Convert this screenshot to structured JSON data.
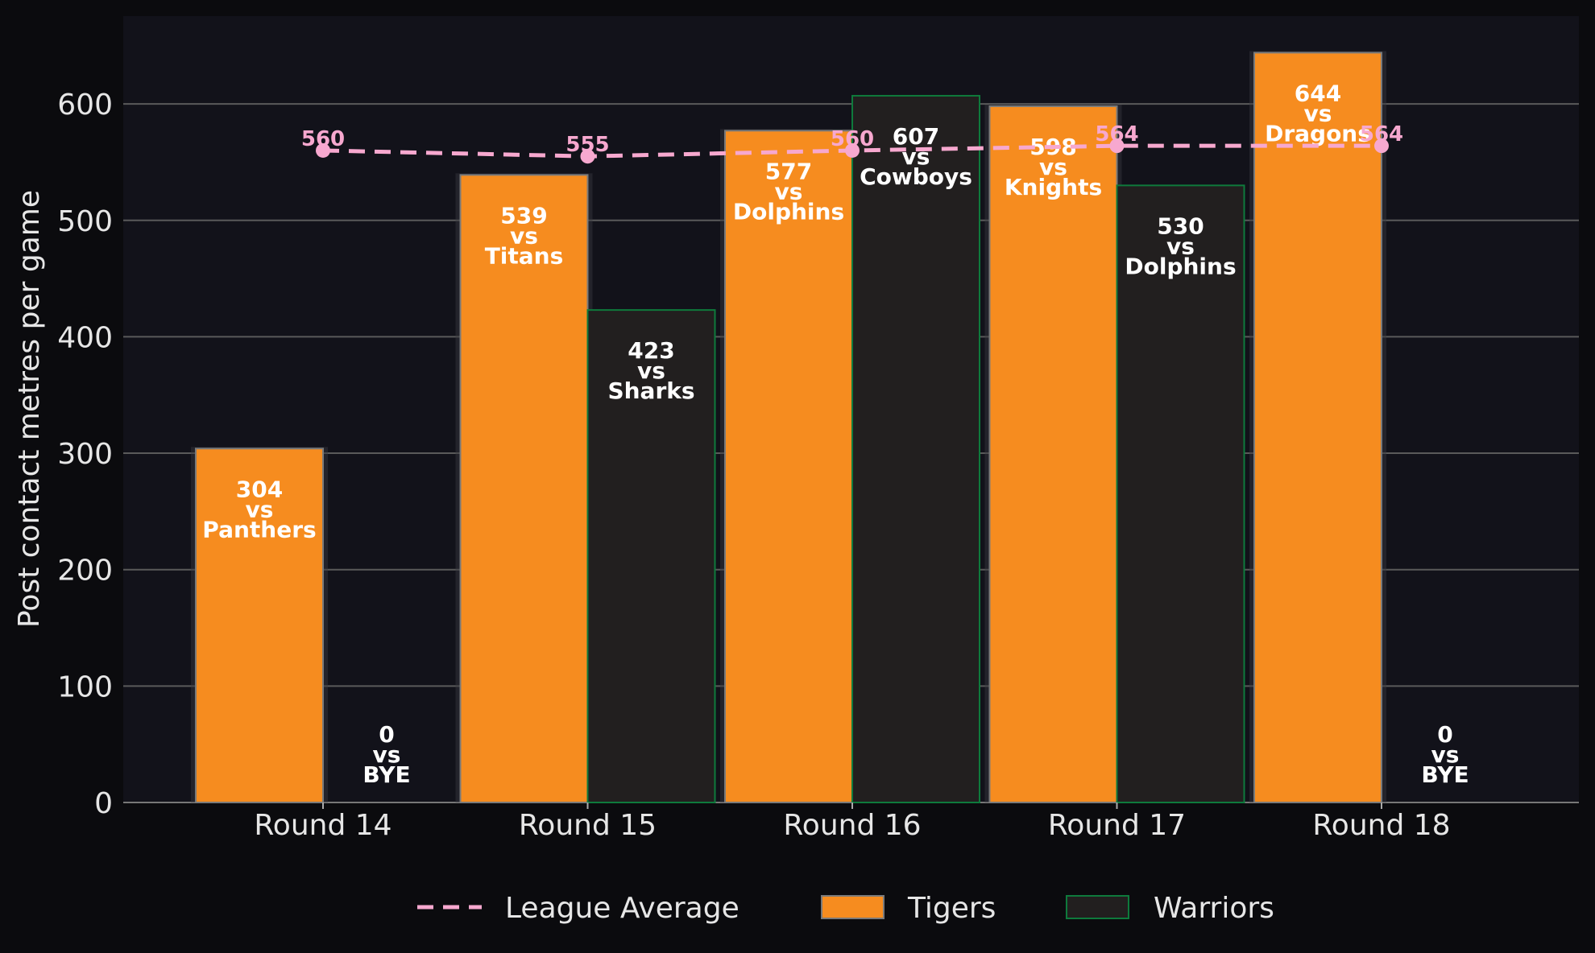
{
  "chart_data": {
    "type": "bar",
    "ylabel": "Post contact metres per game",
    "xlabel": "",
    "ylim": [
      0,
      675
    ],
    "yticks": [
      0,
      100,
      200,
      300,
      400,
      500,
      600
    ],
    "grid": true,
    "legend_position": "bottom-center",
    "categories": [
      "Round 14",
      "Round 15",
      "Round 16",
      "Round 17",
      "Round 18"
    ],
    "series": [
      {
        "name": "Tigers",
        "values": [
          304,
          539,
          577,
          598,
          644
        ],
        "opponents": [
          "Panthers",
          "Titans",
          "Dolphins",
          "Knights",
          "Dragons"
        ],
        "color": "#f68c1f",
        "edge": "#7a7a7a"
      },
      {
        "name": "Warriors",
        "values": [
          0,
          423,
          607,
          530,
          0
        ],
        "opponents": [
          "BYE",
          "Sharks",
          "Cowboys",
          "Dolphins",
          "BYE"
        ],
        "color": "#221f1f",
        "edge": "#0e7a3c"
      }
    ],
    "average": {
      "name": "League Average",
      "values": [
        560,
        555,
        560,
        564,
        564
      ],
      "color": "#f7a8cf"
    },
    "vs_text": "vs"
  },
  "colors": {
    "background": "#0b0b0e",
    "plot_background": "#12121a",
    "grid": "#5a5a5a",
    "text": "#e6e6e6"
  }
}
